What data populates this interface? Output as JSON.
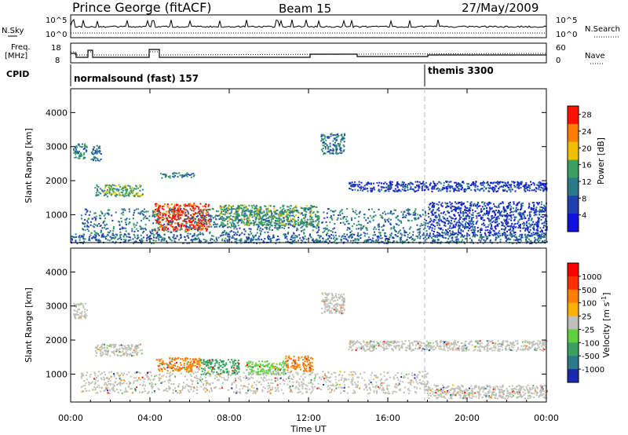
{
  "header": {
    "station": "Prince George (fitACF)",
    "beam": "Beam 15",
    "date": "27/May/2009"
  },
  "top_panels": {
    "nsky_label": "N.Sky",
    "nsearch_label": "N.Search",
    "freq_label_line1": "Freq.",
    "freq_label_line2": "[MHz]",
    "nave_label": "Nave",
    "cpid_label": "CPID",
    "nsky_ticks": [
      "10^5",
      "10^0"
    ],
    "freq_ticks": [
      "18",
      "8"
    ],
    "nave_ticks": [
      "60",
      "0"
    ],
    "cpid_segments": [
      {
        "label": "normalsound (fast) 157",
        "start_hour": 0
      },
      {
        "label": "themis 3300",
        "start_hour": 18
      }
    ]
  },
  "chart_data": [
    {
      "type": "heatmap",
      "name": "power-panel",
      "ylabel": "Slant Range [km]",
      "xlabel": "",
      "xlim": [
        0,
        24
      ],
      "ylim": [
        180,
        4700
      ],
      "yticks": [
        "1000",
        "2000",
        "3000",
        "4000"
      ],
      "colorbar": {
        "label": "Power [dB]",
        "ticks": [
          "4",
          "8",
          "12",
          "16",
          "20",
          "24",
          "28"
        ],
        "range": [
          0,
          30
        ],
        "colors": [
          "#1010e0",
          "#2040b0",
          "#2a7a8a",
          "#3aa060",
          "#f0c000",
          "#ff8000",
          "#ff1000"
        ]
      },
      "regions": [
        {
          "t0": 0.1,
          "t1": 0.8,
          "r0": 2650,
          "r1": 3100,
          "level": 12
        },
        {
          "t0": 1.0,
          "t1": 1.5,
          "r0": 2600,
          "r1": 3050,
          "level": 10
        },
        {
          "t0": 1.2,
          "t1": 3.6,
          "r0": 1550,
          "r1": 1900,
          "level": 14
        },
        {
          "t0": 4.5,
          "t1": 6.2,
          "r0": 2100,
          "r1": 2250,
          "level": 11
        },
        {
          "t0": 4.2,
          "t1": 7.0,
          "r0": 550,
          "r1": 1350,
          "level": 27
        },
        {
          "t0": 0.5,
          "t1": 18.0,
          "r0": 450,
          "r1": 1200,
          "level": 10
        },
        {
          "t0": 7.5,
          "t1": 12.5,
          "r0": 700,
          "r1": 1300,
          "level": 14
        },
        {
          "t0": 12.6,
          "t1": 13.8,
          "r0": 2800,
          "r1": 3400,
          "level": 10
        },
        {
          "t0": 14.0,
          "t1": 24.0,
          "r0": 1700,
          "r1": 2000,
          "level": 6
        },
        {
          "t0": 18.0,
          "t1": 24.0,
          "r0": 400,
          "r1": 1400,
          "level": 6
        },
        {
          "t0": 0.0,
          "t1": 24.0,
          "r0": 180,
          "r1": 450,
          "level": 9
        }
      ]
    },
    {
      "type": "heatmap",
      "name": "velocity-panel",
      "ylabel": "Slant Range [km]",
      "xlabel": "Time UT",
      "xlim": [
        0,
        24
      ],
      "ylim": [
        180,
        4700
      ],
      "xticks": [
        "00:00",
        "04:00",
        "08:00",
        "12:00",
        "16:00",
        "20:00",
        "00:00"
      ],
      "yticks": [
        "1000",
        "2000",
        "3000",
        "4000"
      ],
      "colorbar": {
        "label": "Velocity [m s",
        "label_sup": "-1",
        "label_end": "]",
        "ticks": [
          "1000",
          "500",
          "100",
          "25",
          "-25",
          "-100",
          "-500",
          "-1000"
        ],
        "colors": [
          "#1a2ab0",
          "#2a7a8a",
          "#3aa060",
          "#60d040",
          "#c0c0b8",
          "#ffb000",
          "#ff8000",
          "#ff3000",
          "#ff0000"
        ]
      },
      "regions": [
        {
          "t0": 0.1,
          "t1": 0.8,
          "r0": 2650,
          "r1": 3100,
          "level": 4
        },
        {
          "t0": 1.2,
          "t1": 3.6,
          "r0": 1550,
          "r1": 1900,
          "level": 4
        },
        {
          "t0": 4.3,
          "t1": 6.5,
          "r0": 1100,
          "r1": 1500,
          "level": 6
        },
        {
          "t0": 6.5,
          "t1": 8.5,
          "r0": 1000,
          "r1": 1450,
          "level": 2
        },
        {
          "t0": 8.8,
          "t1": 10.8,
          "r0": 1000,
          "r1": 1400,
          "level": 3
        },
        {
          "t0": 10.8,
          "t1": 12.2,
          "r0": 1100,
          "r1": 1550,
          "level": 6
        },
        {
          "t0": 12.6,
          "t1": 13.8,
          "r0": 2800,
          "r1": 3400,
          "level": 4
        },
        {
          "t0": 0.5,
          "t1": 18.0,
          "r0": 450,
          "r1": 1100,
          "level": 4
        },
        {
          "t0": 14.0,
          "t1": 24.0,
          "r0": 1700,
          "r1": 2000,
          "level": 4
        },
        {
          "t0": 18.0,
          "t1": 24.0,
          "r0": 300,
          "r1": 700,
          "level": 4
        }
      ]
    }
  ]
}
